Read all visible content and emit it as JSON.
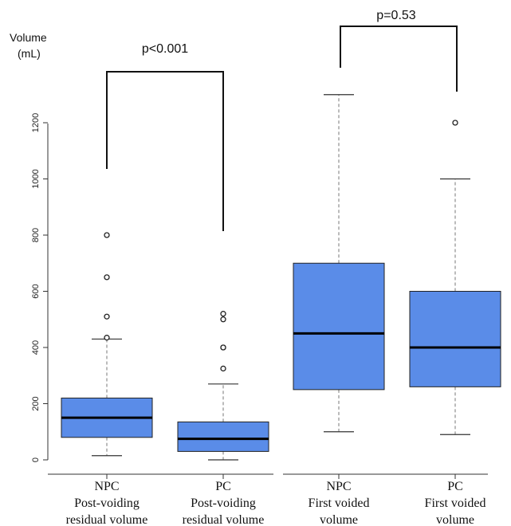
{
  "chart_data": {
    "type": "boxplot",
    "ylabel_line1": "Volume",
    "ylabel_line2": "(mL)",
    "ylim": [
      0,
      1300
    ],
    "yticks": [
      0,
      200,
      400,
      600,
      800,
      1000,
      1200
    ],
    "box_color": "#5a8ce8",
    "categories": [
      {
        "line1": "NPC",
        "line2": "Post-voiding",
        "line3": "residual volume"
      },
      {
        "line1": "PC",
        "line2": "Post-voiding",
        "line3": "residual volume"
      },
      {
        "line1": "NPC",
        "line2": "First voided",
        "line3": "volume"
      },
      {
        "line1": "PC",
        "line2": "First voided",
        "line3": "volume"
      }
    ],
    "boxes": [
      {
        "whisker_low": 15,
        "q1": 80,
        "median": 150,
        "q3": 220,
        "whisker_high": 430,
        "outliers": [
          435,
          510,
          650,
          800
        ]
      },
      {
        "whisker_low": 0,
        "q1": 30,
        "median": 75,
        "q3": 135,
        "whisker_high": 270,
        "outliers": [
          325,
          400,
          400,
          500,
          520
        ]
      },
      {
        "whisker_low": 100,
        "q1": 250,
        "median": 450,
        "q3": 700,
        "whisker_high": 1300,
        "outliers": []
      },
      {
        "whisker_low": 90,
        "q1": 260,
        "median": 400,
        "q3": 600,
        "whisker_high": 1000,
        "outliers": [
          1200
        ]
      }
    ],
    "comparisons": [
      {
        "label": "p<0.001",
        "between": [
          0,
          1
        ]
      },
      {
        "label": "p=0.53",
        "between": [
          2,
          3
        ]
      }
    ]
  }
}
